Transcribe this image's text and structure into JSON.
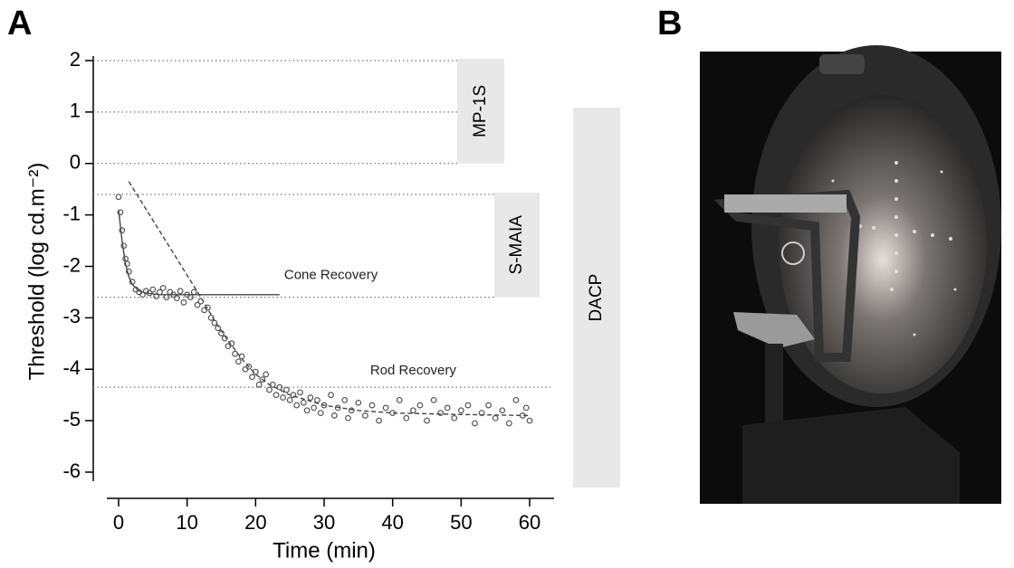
{
  "chart_data": {
    "type": "scatter",
    "panel_labels": [
      "A",
      "B"
    ],
    "xlabel": "Time (min)",
    "ylabel": "Threshold (log cd.m⁻²)",
    "xlim": [
      0,
      60
    ],
    "ylim": [
      -6,
      2
    ],
    "xticks": [
      0,
      10,
      20,
      30,
      40,
      50,
      60
    ],
    "yticks": [
      2,
      1,
      0,
      -1,
      -2,
      -3,
      -4,
      -5,
      -6
    ],
    "color": "#555555",
    "x": [
      0,
      0.25,
      0.5,
      0.75,
      1,
      1.25,
      1.5,
      2,
      2.5,
      3,
      3.5,
      4,
      4.5,
      5,
      5.5,
      6,
      6.5,
      7,
      7.5,
      8,
      8.5,
      9,
      9.5,
      10,
      10.5,
      11,
      11.5,
      12,
      12.5,
      13,
      13.5,
      14,
      14.5,
      15,
      15.5,
      16,
      16.5,
      17,
      17.5,
      18,
      18.5,
      19,
      19.5,
      20,
      20.5,
      21,
      21.5,
      22,
      22.5,
      23,
      23.5,
      24,
      24.5,
      25,
      25.5,
      26,
      26.5,
      27,
      27.5,
      28,
      28.5,
      29,
      29.5,
      30,
      31,
      31.5,
      32,
      33,
      33.5,
      34,
      35,
      36,
      37,
      38,
      39,
      40,
      41,
      42,
      43,
      44,
      45,
      46,
      47,
      48,
      49,
      50,
      51,
      52,
      53,
      54,
      55,
      56,
      57,
      58,
      59,
      59.5,
      60
    ],
    "values": [
      -0.65,
      -0.95,
      -1.3,
      -1.6,
      -1.85,
      -1.95,
      -2.1,
      -2.3,
      -2.45,
      -2.5,
      -2.55,
      -2.48,
      -2.52,
      -2.45,
      -2.58,
      -2.5,
      -2.42,
      -2.6,
      -2.5,
      -2.55,
      -2.62,
      -2.48,
      -2.7,
      -2.55,
      -2.6,
      -2.5,
      -2.75,
      -2.68,
      -2.85,
      -2.8,
      -3.0,
      -3.1,
      -3.2,
      -3.3,
      -3.4,
      -3.55,
      -3.5,
      -3.7,
      -3.85,
      -3.75,
      -4.0,
      -3.95,
      -4.15,
      -4.05,
      -4.3,
      -4.2,
      -4.1,
      -4.4,
      -4.3,
      -4.5,
      -4.35,
      -4.55,
      -4.4,
      -4.6,
      -4.5,
      -4.7,
      -4.45,
      -4.65,
      -4.8,
      -4.55,
      -4.75,
      -4.6,
      -4.85,
      -4.7,
      -4.5,
      -4.9,
      -4.75,
      -4.6,
      -4.95,
      -4.8,
      -4.65,
      -4.9,
      -4.7,
      -5.0,
      -4.75,
      -4.85,
      -4.6,
      -4.95,
      -4.8,
      -4.7,
      -5.0,
      -4.6,
      -4.85,
      -4.75,
      -4.95,
      -4.8,
      -4.7,
      -5.05,
      -4.85,
      -4.7,
      -4.95,
      -4.8,
      -5.05,
      -4.6,
      -4.9,
      -4.75,
      -5.0
    ],
    "fits": [
      {
        "style": "solid",
        "x": [
          0,
          0.5,
          1,
          1.5,
          2,
          3,
          4,
          6,
          10,
          23.5
        ],
        "values": [
          -0.9,
          -1.5,
          -1.95,
          -2.2,
          -2.35,
          -2.48,
          -2.52,
          -2.55,
          -2.55,
          -2.55
        ]
      },
      {
        "style": "dashed",
        "x": [
          1.5,
          12,
          14,
          16,
          18,
          20,
          22,
          25,
          30,
          35,
          40,
          50,
          60
        ],
        "values": [
          -0.35,
          -2.6,
          -3.05,
          -3.45,
          -3.8,
          -4.1,
          -4.3,
          -4.5,
          -4.7,
          -4.8,
          -4.85,
          -4.88,
          -4.9
        ]
      }
    ],
    "annotations": [
      {
        "text": "Cone Recovery",
        "x": 31,
        "y": -2.18
      },
      {
        "text": "Rod Recovery",
        "x": 43,
        "y": -4.03
      }
    ],
    "hlines": [
      2,
      1,
      0,
      -0.6,
      -2.6,
      -4.35
    ],
    "ranges": [
      {
        "label": "MP-1S",
        "ylim": [
          0,
          2
        ]
      },
      {
        "label": "S-MAIA",
        "ylim": [
          -2.6,
          -0.6
        ]
      },
      {
        "label": "DACP",
        "ylim": [
          -6.3,
          1.05
        ]
      }
    ]
  }
}
